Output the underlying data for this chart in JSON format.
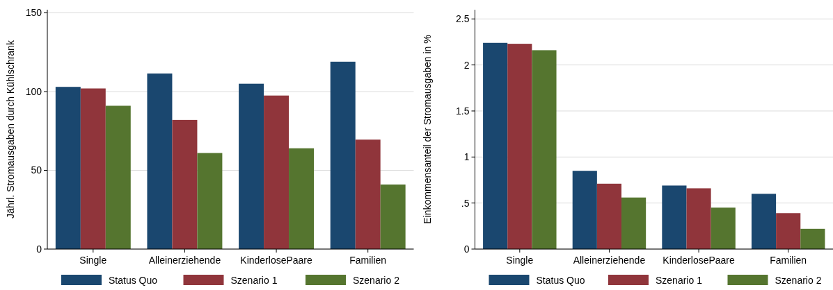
{
  "chart_data": [
    {
      "type": "bar",
      "ylabel": "Jährl. Stromausgaben durch Kühlschrank",
      "categories": [
        "Single",
        "Alleinerziehende",
        "KinderlosePaare",
        "Familien"
      ],
      "series": [
        {
          "name": "Status Quo",
          "color": "#1a476f",
          "values": [
            103,
            111.5,
            105,
            119
          ]
        },
        {
          "name": "Szenario 1",
          "color": "#90353b",
          "values": [
            102,
            82,
            97.5,
            69.5
          ]
        },
        {
          "name": "Szenario 2",
          "color": "#55752f",
          "values": [
            91,
            61,
            64,
            41
          ]
        }
      ],
      "ylim": [
        0,
        152
      ],
      "yticks": [
        0,
        50,
        100,
        150
      ],
      "grid": "y",
      "legend": "bottom"
    },
    {
      "type": "bar",
      "ylabel": "Einkommensanteil der Stromausgaben in %",
      "categories": [
        "Single",
        "Alleinerziehende",
        "KinderlosePaare",
        "Familien"
      ],
      "series": [
        {
          "name": "Status Quo",
          "color": "#1a476f",
          "values": [
            2.24,
            0.85,
            0.69,
            0.6
          ]
        },
        {
          "name": "Szenario 1",
          "color": "#90353b",
          "values": [
            2.23,
            0.71,
            0.66,
            0.39
          ]
        },
        {
          "name": "Szenario 2",
          "color": "#55752f",
          "values": [
            2.16,
            0.56,
            0.45,
            0.22
          ]
        }
      ],
      "ylim": [
        0,
        2.6
      ],
      "yticks": [
        0,
        {
          "value": 0.5,
          "label": ".5"
        },
        1,
        1.5,
        2,
        2.5
      ],
      "grid": "y",
      "legend": "bottom"
    }
  ]
}
